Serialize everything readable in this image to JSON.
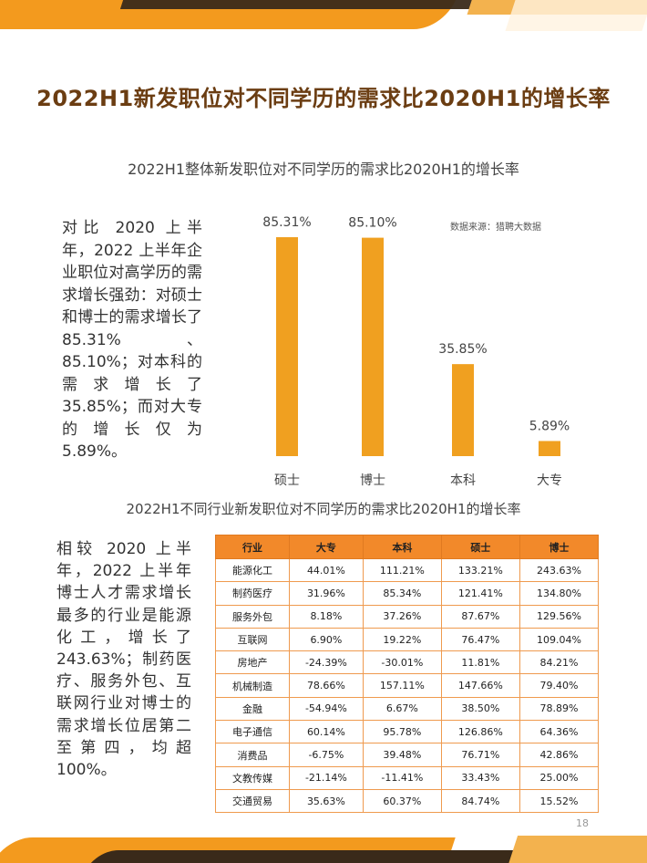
{
  "main_title": "2022H1新发职位对不同学历的需求比2020H1的增长率",
  "chart_title": "2022H1整体新发职位对不同学历的需求比2020H1的增长率",
  "source": "数据来源：猎聘大数据",
  "paragraph1": "对比 2020 上半年，2022 上半年企业职位对高学历的需求增长强劲：对硕士和博士的需求增长了 85.31%、85.10%；对本科的需求增长了 35.85%；而对大专的增长仅为 5.89%。",
  "table_title": "2022H1不同行业新发职位对不同学历的需求比2020H1的增长率",
  "paragraph2": "相较 2020 上半年，2022 上半年博士人才需求增长最多的行业是能源化工，增长了 243.63%；制药医疗、服务外包、互联网行业对博士的需求增长位居第二至第四，均超100%。",
  "page_number": "18",
  "colors": {
    "bar": "#f0a020",
    "header": "#f2892a",
    "title": "#6b3d12"
  },
  "chart_data": {
    "type": "bar",
    "categories": [
      "硕士",
      "博士",
      "本科",
      "大专"
    ],
    "values": [
      85.31,
      85.1,
      35.85,
      5.89
    ],
    "labels": [
      "85.31%",
      "85.10%",
      "35.85%",
      "5.89%"
    ],
    "ylim": [
      0,
      100
    ],
    "grid": false
  },
  "table": {
    "headers": [
      "行业",
      "大专",
      "本科",
      "硕士",
      "博士"
    ],
    "rows": [
      [
        "能源化工",
        "44.01%",
        "111.21%",
        "133.21%",
        "243.63%"
      ],
      [
        "制药医疗",
        "31.96%",
        "85.34%",
        "121.41%",
        "134.80%"
      ],
      [
        "服务外包",
        "8.18%",
        "37.26%",
        "87.67%",
        "129.56%"
      ],
      [
        "互联网",
        "6.90%",
        "19.22%",
        "76.47%",
        "109.04%"
      ],
      [
        "房地产",
        "-24.39%",
        "-30.01%",
        "11.81%",
        "84.21%"
      ],
      [
        "机械制造",
        "78.66%",
        "157.11%",
        "147.66%",
        "79.40%"
      ],
      [
        "金融",
        "-54.94%",
        "6.67%",
        "38.50%",
        "78.89%"
      ],
      [
        "电子通信",
        "60.14%",
        "95.78%",
        "126.86%",
        "64.36%"
      ],
      [
        "消费品",
        "-6.75%",
        "39.48%",
        "76.71%",
        "42.86%"
      ],
      [
        "文教传媒",
        "-21.14%",
        "-11.41%",
        "33.43%",
        "25.00%"
      ],
      [
        "交通贸易",
        "35.63%",
        "60.37%",
        "84.74%",
        "15.52%"
      ]
    ]
  }
}
